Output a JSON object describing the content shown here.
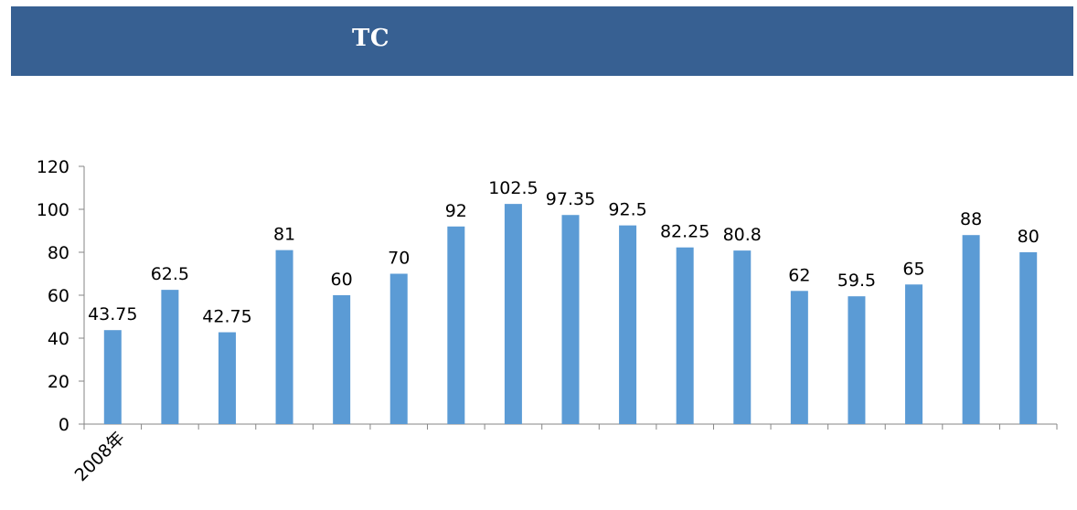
{
  "header": {
    "title": "TC",
    "background": "#376092"
  },
  "chart_data": {
    "type": "bar",
    "categories": [
      "2008年",
      "",
      "",
      "",
      "",
      "",
      "",
      "",
      "",
      "",
      "",
      "",
      "",
      "",
      "",
      "",
      ""
    ],
    "values": [
      43.75,
      62.5,
      42.75,
      81,
      60,
      70,
      92,
      102.5,
      97.35,
      92.5,
      82.25,
      80.8,
      62,
      59.5,
      65,
      88,
      80
    ],
    "data_labels": [
      "43.75",
      "62.5",
      "42.75",
      "81",
      "60",
      "70",
      "92",
      "102.5",
      "97.35",
      "92.5",
      "82.25",
      "80.8",
      "62",
      "59.5",
      "65",
      "88",
      "80"
    ],
    "ylim": [
      0,
      120
    ],
    "yticks": [
      0,
      20,
      40,
      60,
      80,
      100,
      120
    ],
    "ytick_labels": [
      "0",
      "20",
      "40",
      "60",
      "80",
      "100",
      "120"
    ],
    "grid": false,
    "legend": "none",
    "bar_color": "#5b9bd5",
    "title": "",
    "xlabel": "",
    "ylabel": ""
  }
}
